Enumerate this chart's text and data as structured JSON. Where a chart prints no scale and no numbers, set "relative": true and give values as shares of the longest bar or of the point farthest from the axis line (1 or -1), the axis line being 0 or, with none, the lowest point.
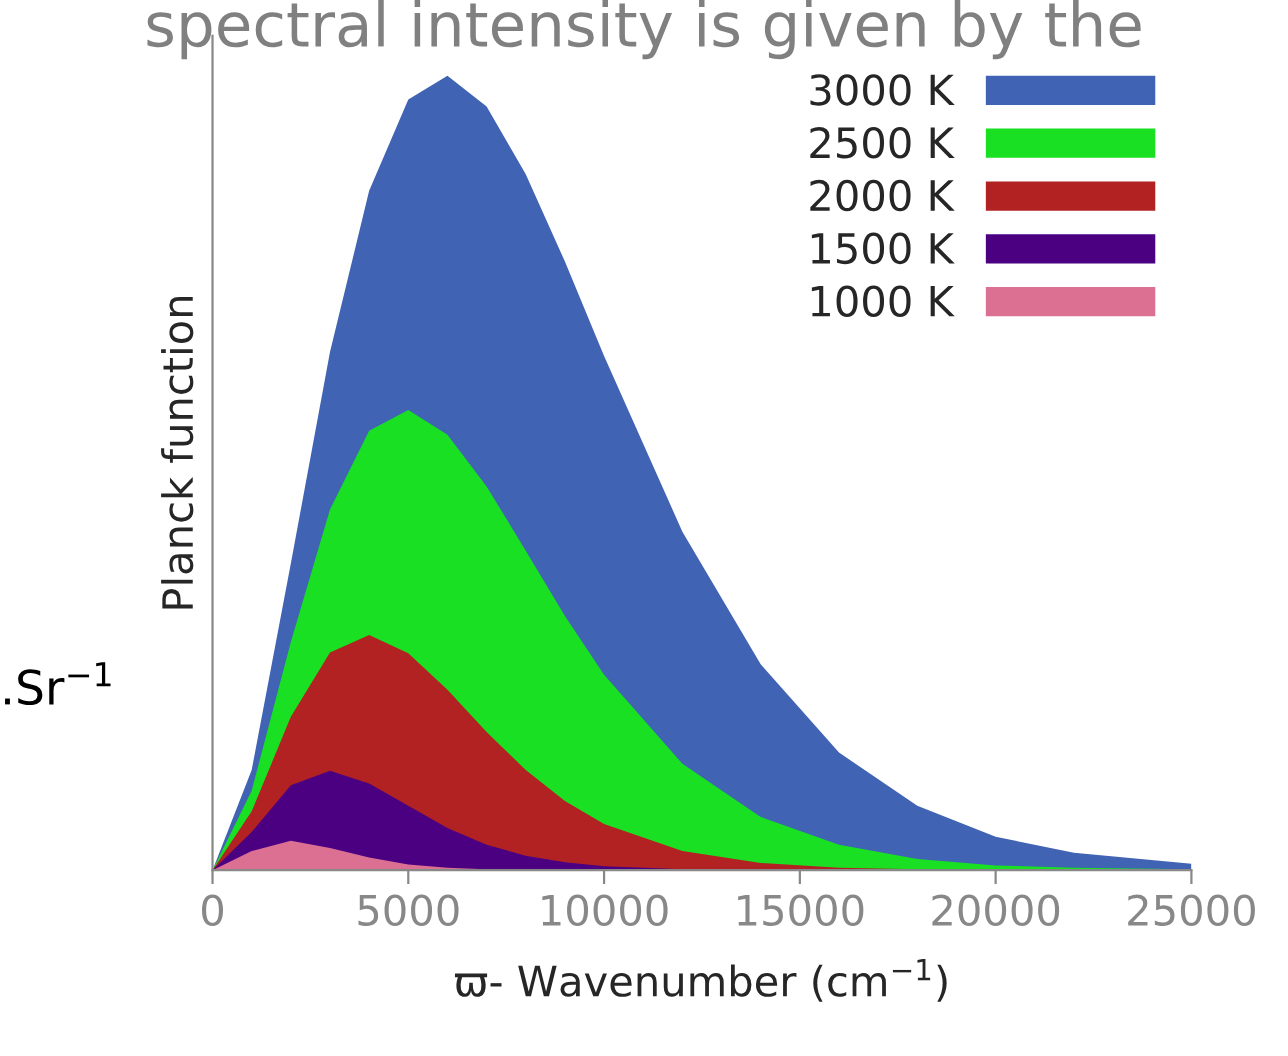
{
  "chart_data": {
    "type": "area",
    "relative": true,
    "xlabel": "ϖ- Wavenumber (cm$^{−1}$)",
    "ylabel": "Planck function",
    "annotations": [
      "spectral intensity is given by the",
      ".Sr$^{−1}$"
    ],
    "x": [
      0,
      1000,
      2000,
      3000,
      4000,
      5000,
      6000,
      7000,
      8000,
      9000,
      10000,
      12000,
      14000,
      16000,
      18000,
      20000,
      22000,
      25000
    ],
    "xlim": [
      0,
      25000
    ],
    "xticks": [
      0,
      5000,
      10000,
      15000,
      20000,
      25000
    ],
    "tick_labels": "x",
    "grid": false,
    "legend": "top right",
    "series": [
      {
        "name": "3000 K",
        "color": "#4063b4",
        "values": [
          0,
          0.126,
          0.386,
          0.652,
          0.855,
          0.97,
          1.0,
          0.961,
          0.876,
          0.766,
          0.647,
          0.426,
          0.259,
          0.148,
          0.081,
          0.042,
          0.022,
          0.008
        ]
      },
      {
        "name": "2500 K",
        "color": "#19e022",
        "values": [
          0,
          0.1,
          0.287,
          0.454,
          0.553,
          0.579,
          0.548,
          0.483,
          0.402,
          0.32,
          0.246,
          0.134,
          0.067,
          0.032,
          0.014,
          0.006,
          0.003,
          0.001
        ]
      },
      {
        "name": "2000 K",
        "color": "#b22222",
        "values": [
          0,
          0.074,
          0.193,
          0.274,
          0.296,
          0.273,
          0.227,
          0.174,
          0.126,
          0.087,
          0.058,
          0.024,
          0.009,
          0.003,
          0.001,
          0,
          0,
          0
        ]
      },
      {
        "name": "1500 K",
        "color": "#4b0082",
        "values": [
          0,
          0.048,
          0.107,
          0.125,
          0.109,
          0.081,
          0.053,
          0.032,
          0.018,
          0.01,
          0.005,
          0.001,
          0,
          0,
          0,
          0,
          0,
          0
        ]
      },
      {
        "name": "1000 K",
        "color": "#db7093",
        "values": [
          0,
          0.024,
          0.037,
          0.028,
          0.016,
          0.007,
          0.003,
          0.001,
          0,
          0,
          0,
          0,
          0,
          0,
          0,
          0,
          0,
          0
        ]
      }
    ]
  }
}
